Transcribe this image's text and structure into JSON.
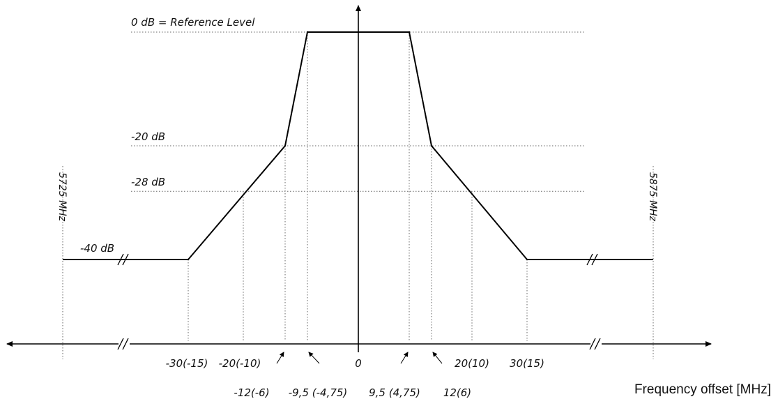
{
  "chart_data": {
    "type": "line",
    "title": "",
    "xlabel": "Frequency offset [MHz]",
    "ylabel": "",
    "series": [
      {
        "x": [
          -30,
          -12,
          -9.5,
          9.5,
          12,
          30
        ],
        "y": [
          -40,
          -20,
          0,
          0,
          -20,
          -40
        ]
      }
    ],
    "flat_extension_level_db": -40,
    "reference_label": "0 dB = Reference Level",
    "level_labels": [
      "-20 dB",
      "-28 dB",
      "-40 dB"
    ],
    "x_tick_labels": {
      "lower": [
        "-30(-15)",
        "-20(-10)",
        "0",
        "20(10)",
        "30(15)"
      ],
      "upper_arrows": [
        "-12(-6)",
        "-9,5 (-4,75)",
        "9,5 (4,75)",
        "12(6)"
      ]
    },
    "band_edge_labels": {
      "left": "5725 MHz",
      "right": "5875 MHz"
    },
    "axis_break_marker": "//"
  }
}
